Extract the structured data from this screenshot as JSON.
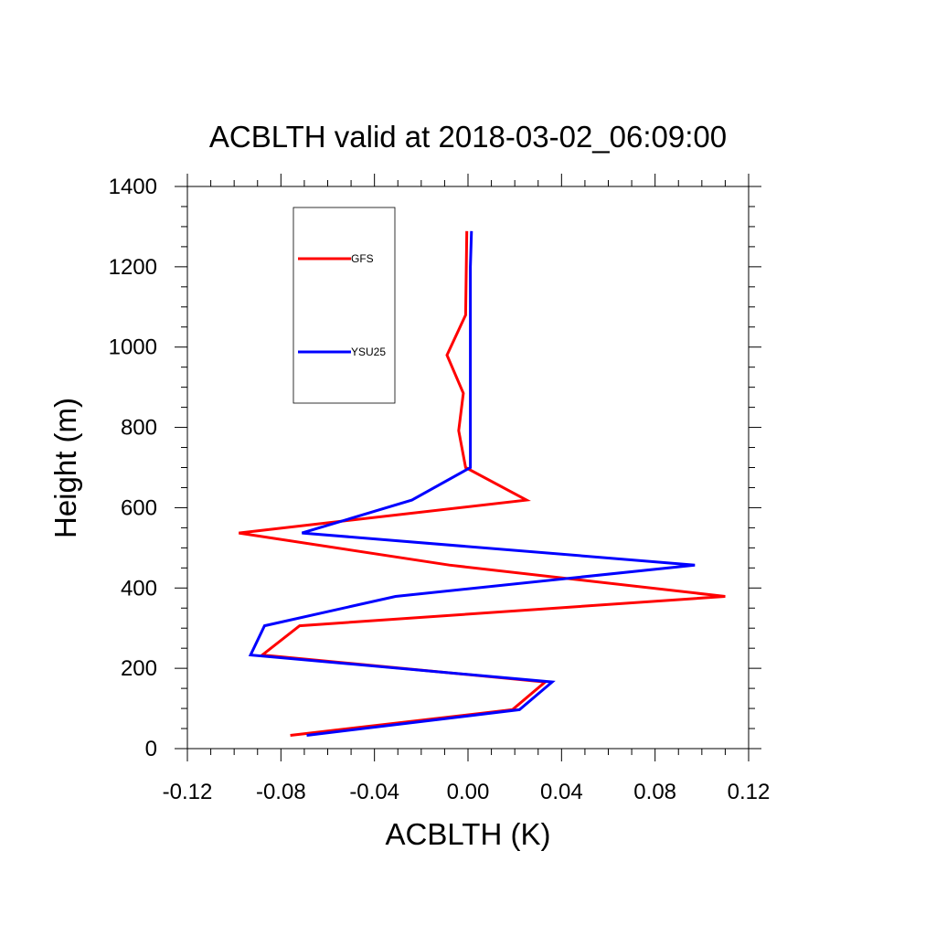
{
  "chart_data": {
    "type": "line",
    "title": "ACBLTH valid at 2018-03-02_06:09:00",
    "xlabel": "ACBLTH (K)",
    "ylabel": "Height (m)",
    "xlim": [
      -0.12,
      0.12
    ],
    "ylim": [
      0,
      1400
    ],
    "x_ticks": [
      -0.12,
      -0.08,
      -0.04,
      0.0,
      0.04,
      0.08,
      0.12
    ],
    "x_tick_labels": [
      "-0.12",
      "-0.08",
      "-0.04",
      "0.00",
      "0.04",
      "0.08",
      "0.12"
    ],
    "y_ticks": [
      0,
      200,
      400,
      600,
      800,
      1000,
      1200,
      1400
    ],
    "y_tick_labels": [
      "0",
      "200",
      "400",
      "600",
      "800",
      "1000",
      "1200",
      "1400"
    ],
    "grid": false,
    "legend": "top-left",
    "series": [
      {
        "name": "GFS",
        "color": "#ff0000",
        "points": [
          [
            -0.076,
            33
          ],
          [
            0.019,
            97
          ],
          [
            0.033,
            166
          ],
          [
            -0.088,
            233
          ],
          [
            -0.072,
            306
          ],
          [
            0.11,
            379
          ],
          [
            -0.008,
            457
          ],
          [
            -0.098,
            537
          ],
          [
            0.025,
            619
          ],
          [
            -0.001,
            700
          ],
          [
            -0.004,
            792
          ],
          [
            -0.002,
            885
          ],
          [
            -0.009,
            980
          ],
          [
            -0.001,
            1080
          ],
          [
            -0.0005,
            1289
          ]
        ]
      },
      {
        "name": "YSU25",
        "color": "#0000ff",
        "points": [
          [
            -0.069,
            33
          ],
          [
            0.022,
            97
          ],
          [
            0.036,
            166
          ],
          [
            -0.093,
            233
          ],
          [
            -0.087,
            306
          ],
          [
            -0.031,
            379
          ],
          [
            0.097,
            457
          ],
          [
            -0.071,
            537
          ],
          [
            -0.024,
            619
          ],
          [
            0.001,
            700
          ],
          [
            0.001,
            1000
          ],
          [
            0.001,
            1200
          ],
          [
            0.0015,
            1289
          ]
        ]
      }
    ]
  }
}
